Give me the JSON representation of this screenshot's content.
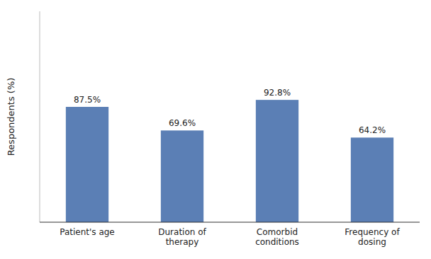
{
  "chart_data": {
    "type": "bar",
    "categories": [
      "Patient's age",
      "Duration of\ntherapy",
      "Comorbid\nconditions",
      "Frequency of\ndosing"
    ],
    "values": [
      87.5,
      69.6,
      92.8,
      64.2
    ],
    "value_labels": [
      "87.5%",
      "69.6%",
      "92.8%",
      "64.2%"
    ],
    "data_labels": true,
    "color": "#5b7fb5",
    "ylabel": "Respondents (%)",
    "ylim": [
      0,
      160
    ],
    "tick_labels": "x",
    "grid": false
  }
}
